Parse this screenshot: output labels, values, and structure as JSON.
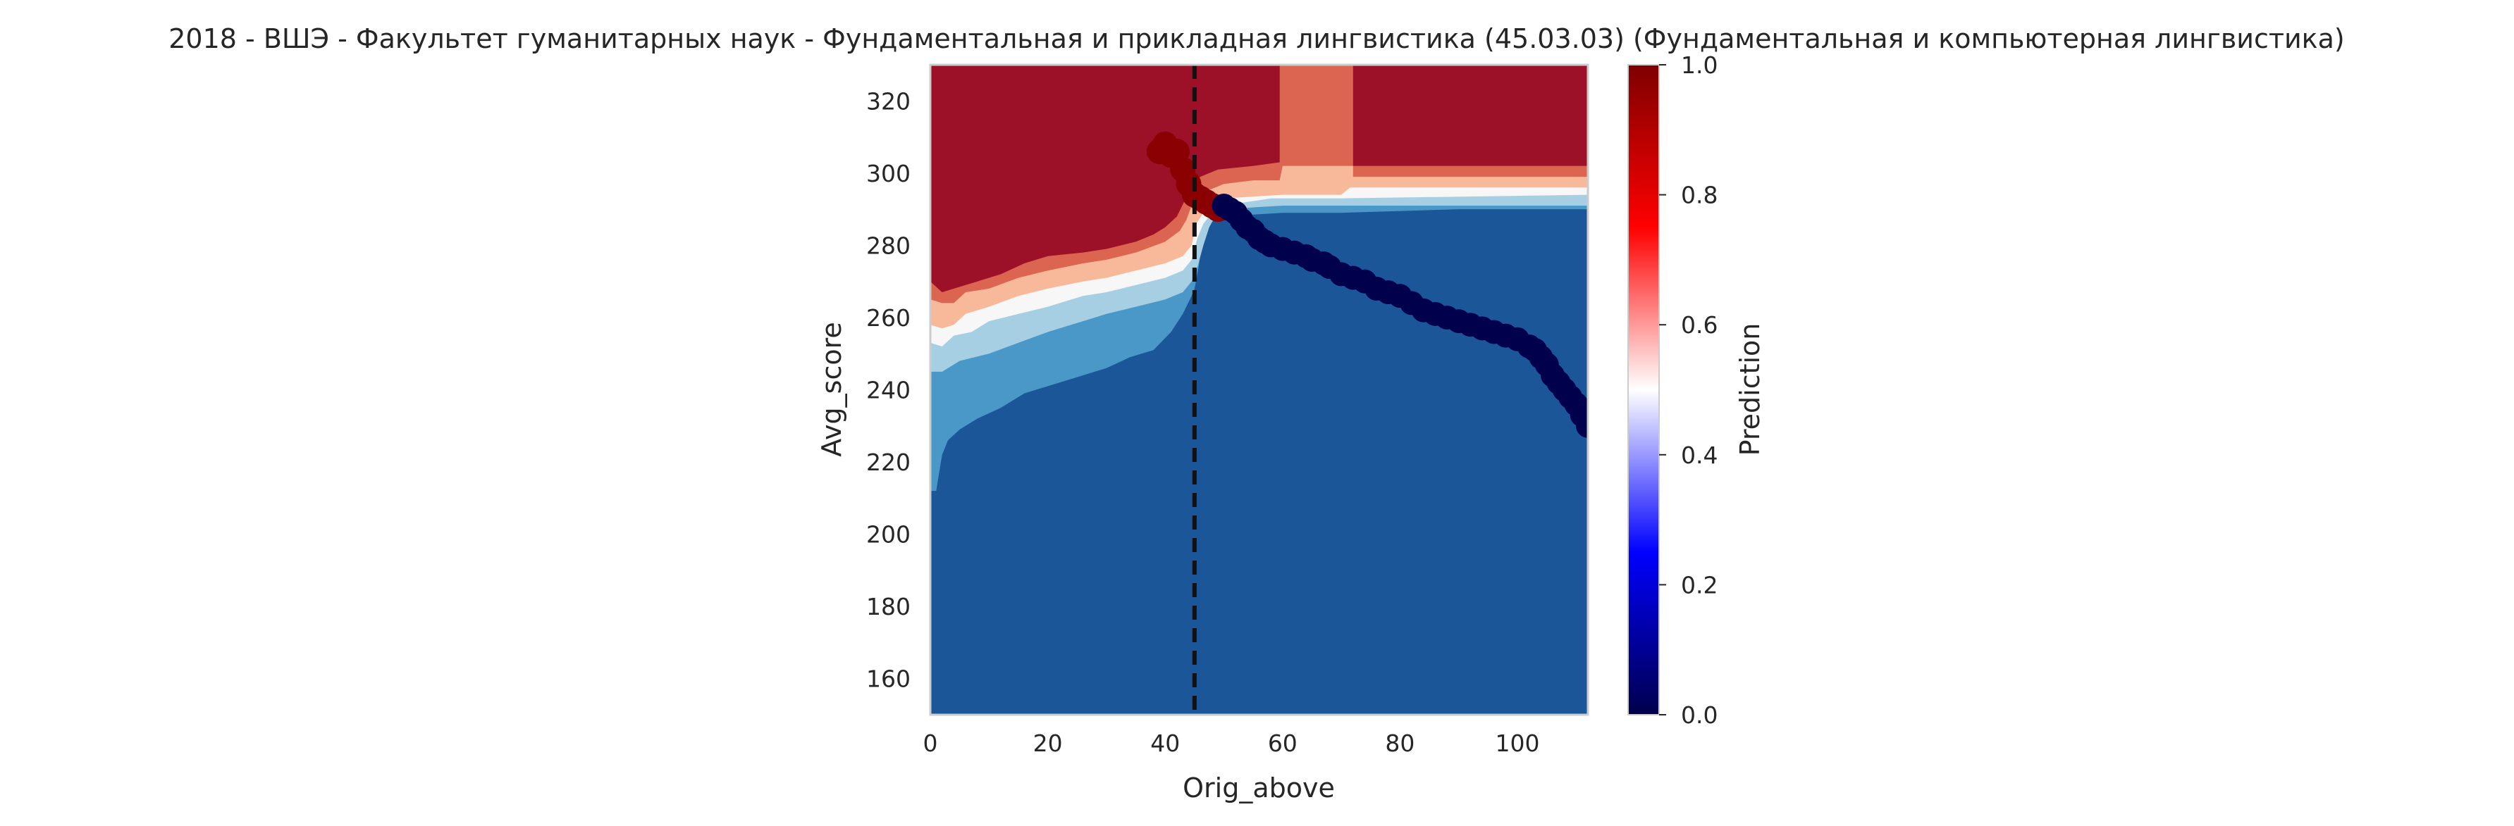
{
  "chart_data": {
    "type": "heatmap",
    "title": "2018 - ВШЭ - Факультет гуманитарных наук - Фундаментальная и прикладная лингвистика (45.03.03) (Фундаментальная и компьютерная лингвистика)",
    "xlabel": "Orig_above",
    "ylabel": "Avg_score",
    "colorbar_label": "Prediction",
    "xlim": [
      0,
      112
    ],
    "ylim": [
      150,
      330
    ],
    "x_ticks": [
      "0",
      "20",
      "40",
      "60",
      "80",
      "100"
    ],
    "x_tick_values": [
      0,
      20,
      40,
      60,
      80,
      100
    ],
    "y_ticks": [
      "160",
      "180",
      "200",
      "220",
      "240",
      "260",
      "280",
      "300",
      "320"
    ],
    "y_tick_values": [
      160,
      180,
      200,
      220,
      240,
      260,
      280,
      300,
      320
    ],
    "colorbar_ticks": [
      "0.0",
      "0.2",
      "0.4",
      "0.6",
      "0.8",
      "1.0"
    ],
    "colorbar_tick_values": [
      0.0,
      0.2,
      0.4,
      0.6,
      0.8,
      1.0
    ],
    "colorbar_colors": [
      "#00004c",
      "#0000ff",
      "#ffffff",
      "#ff0000",
      "#7f0000"
    ],
    "contour_colors": {
      "high": "#9c1127",
      "upper_mid": "#dc6551",
      "mid_high": "#f8b89a",
      "mid": "#f7f7f7",
      "mid_low": "#a7cfe4",
      "lower_mid": "#4a98c8",
      "low": "#1b5798"
    },
    "grid": false,
    "threshold_line_x": 45,
    "boundaries": {
      "b_low_mid": [
        [
          0,
          212
        ],
        [
          1,
          212
        ],
        [
          2,
          222
        ],
        [
          3,
          226
        ],
        [
          5,
          229
        ],
        [
          8,
          232
        ],
        [
          12,
          235
        ],
        [
          16,
          239
        ],
        [
          20,
          241
        ],
        [
          26,
          244
        ],
        [
          30,
          246
        ],
        [
          34,
          249
        ],
        [
          38,
          251
        ],
        [
          41,
          256
        ],
        [
          43,
          261
        ],
        [
          44.5,
          266
        ],
        [
          45,
          268
        ],
        [
          45.7,
          274
        ],
        [
          46.3,
          281
        ],
        [
          47.3,
          285
        ],
        [
          48.5,
          287.5
        ],
        [
          50,
          288
        ],
        [
          60,
          289
        ],
        [
          70,
          289
        ],
        [
          90,
          290
        ],
        [
          112,
          290
        ]
      ],
      "b_lowmid_midlow": [
        [
          0,
          245
        ],
        [
          2,
          245
        ],
        [
          5,
          248
        ],
        [
          10,
          250
        ],
        [
          15,
          253
        ],
        [
          20,
          256
        ],
        [
          26,
          259
        ],
        [
          30,
          261
        ],
        [
          35,
          263
        ],
        [
          40,
          265
        ],
        [
          43,
          267
        ],
        [
          44.5,
          270
        ],
        [
          45.5,
          274
        ],
        [
          46.5,
          280
        ],
        [
          47.5,
          285
        ],
        [
          48.5,
          288
        ],
        [
          50,
          290
        ],
        [
          60,
          291
        ],
        [
          112,
          291
        ]
      ],
      "b_midlow_mid": [
        [
          0,
          253
        ],
        [
          2,
          252
        ],
        [
          4,
          255
        ],
        [
          7,
          256
        ],
        [
          10,
          259
        ],
        [
          15,
          261
        ],
        [
          20,
          263
        ],
        [
          26,
          266
        ],
        [
          30,
          267
        ],
        [
          35,
          269
        ],
        [
          40,
          271
        ],
        [
          43,
          273
        ],
        [
          44.5,
          276
        ],
        [
          45.5,
          282
        ],
        [
          46.5,
          286
        ],
        [
          48,
          289
        ],
        [
          50,
          291
        ],
        [
          58,
          293
        ],
        [
          70,
          293
        ],
        [
          112,
          294
        ]
      ],
      "b_mid_midhigh": [
        [
          0,
          258
        ],
        [
          2,
          257
        ],
        [
          4,
          258
        ],
        [
          6,
          261
        ],
        [
          10,
          263
        ],
        [
          15,
          266
        ],
        [
          20,
          268
        ],
        [
          26,
          270
        ],
        [
          30,
          271
        ],
        [
          35,
          273
        ],
        [
          40,
          275
        ],
        [
          43,
          277
        ],
        [
          44.5,
          280
        ],
        [
          45.3,
          286
        ],
        [
          46.5,
          289
        ],
        [
          48,
          291
        ],
        [
          50,
          293
        ],
        [
          60,
          294
        ],
        [
          70,
          294
        ],
        [
          71.5,
          296
        ],
        [
          112,
          296
        ]
      ],
      "b_midhigh_uppermid": [
        [
          0,
          265
        ],
        [
          2,
          264
        ],
        [
          4,
          264
        ],
        [
          6,
          267
        ],
        [
          10,
          268
        ],
        [
          15,
          271
        ],
        [
          20,
          273
        ],
        [
          26,
          275
        ],
        [
          30,
          276
        ],
        [
          35,
          278
        ],
        [
          40,
          281
        ],
        [
          42.5,
          284
        ],
        [
          43.6,
          287
        ],
        [
          44.5,
          291
        ],
        [
          45.5,
          294
        ],
        [
          47,
          295
        ],
        [
          50,
          297
        ],
        [
          55,
          298
        ],
        [
          59.5,
          298
        ],
        [
          60,
          302
        ],
        [
          72,
          302
        ],
        [
          72,
          299
        ],
        [
          112,
          299
        ]
      ],
      "b_uppermid_high": [
        [
          0,
          270
        ],
        [
          2,
          267
        ],
        [
          4,
          268
        ],
        [
          8,
          270
        ],
        [
          12,
          272
        ],
        [
          16,
          275
        ],
        [
          20,
          277
        ],
        [
          26,
          278
        ],
        [
          30,
          279
        ],
        [
          35,
          281
        ],
        [
          38,
          283
        ],
        [
          40,
          285
        ],
        [
          42,
          288
        ],
        [
          43.2,
          292
        ],
        [
          44.2,
          296
        ],
        [
          46,
          299
        ],
        [
          49,
          301
        ],
        [
          55,
          302
        ],
        [
          59.5,
          303
        ],
        [
          59.5,
          330
        ],
        [
          72,
          330
        ],
        [
          72,
          302
        ],
        [
          112,
          302
        ]
      ]
    },
    "band_order": [
      "low",
      "lower_mid",
      "mid_low",
      "mid",
      "mid_high",
      "upper_mid",
      "high"
    ],
    "points_positive": [
      [
        39,
        306
      ],
      [
        40,
        308
      ],
      [
        41,
        305
      ],
      [
        42,
        306
      ],
      [
        43,
        301
      ],
      [
        44,
        297
      ],
      [
        45,
        294
      ],
      [
        46,
        293
      ],
      [
        47,
        292
      ],
      [
        48,
        291
      ],
      [
        49,
        290
      ]
    ],
    "points_negative": [
      [
        50,
        291
      ],
      [
        51,
        290
      ],
      [
        52,
        289
      ],
      [
        53,
        287
      ],
      [
        54,
        285
      ],
      [
        55,
        284
      ],
      [
        56,
        282
      ],
      [
        57,
        281
      ],
      [
        58,
        280
      ],
      [
        60,
        279
      ],
      [
        62,
        278
      ],
      [
        64,
        277
      ],
      [
        65,
        276
      ],
      [
        67,
        275
      ],
      [
        68,
        274
      ],
      [
        70,
        272
      ],
      [
        72,
        271
      ],
      [
        74,
        270
      ],
      [
        76,
        268
      ],
      [
        78,
        267
      ],
      [
        80,
        266
      ],
      [
        82,
        264
      ],
      [
        84,
        262
      ],
      [
        86,
        261
      ],
      [
        88,
        260
      ],
      [
        90,
        259
      ],
      [
        92,
        258
      ],
      [
        94,
        257
      ],
      [
        96,
        256
      ],
      [
        98,
        255
      ],
      [
        100,
        254
      ],
      [
        102,
        252
      ],
      [
        103,
        251
      ],
      [
        104,
        249
      ],
      [
        105,
        247
      ],
      [
        106,
        244
      ],
      [
        107,
        242
      ],
      [
        108,
        240
      ],
      [
        109,
        238
      ],
      [
        110,
        236
      ],
      [
        111,
        233
      ],
      [
        112,
        230
      ]
    ],
    "point_color_positive": "#8b0000",
    "point_color_negative": "#00004d"
  }
}
